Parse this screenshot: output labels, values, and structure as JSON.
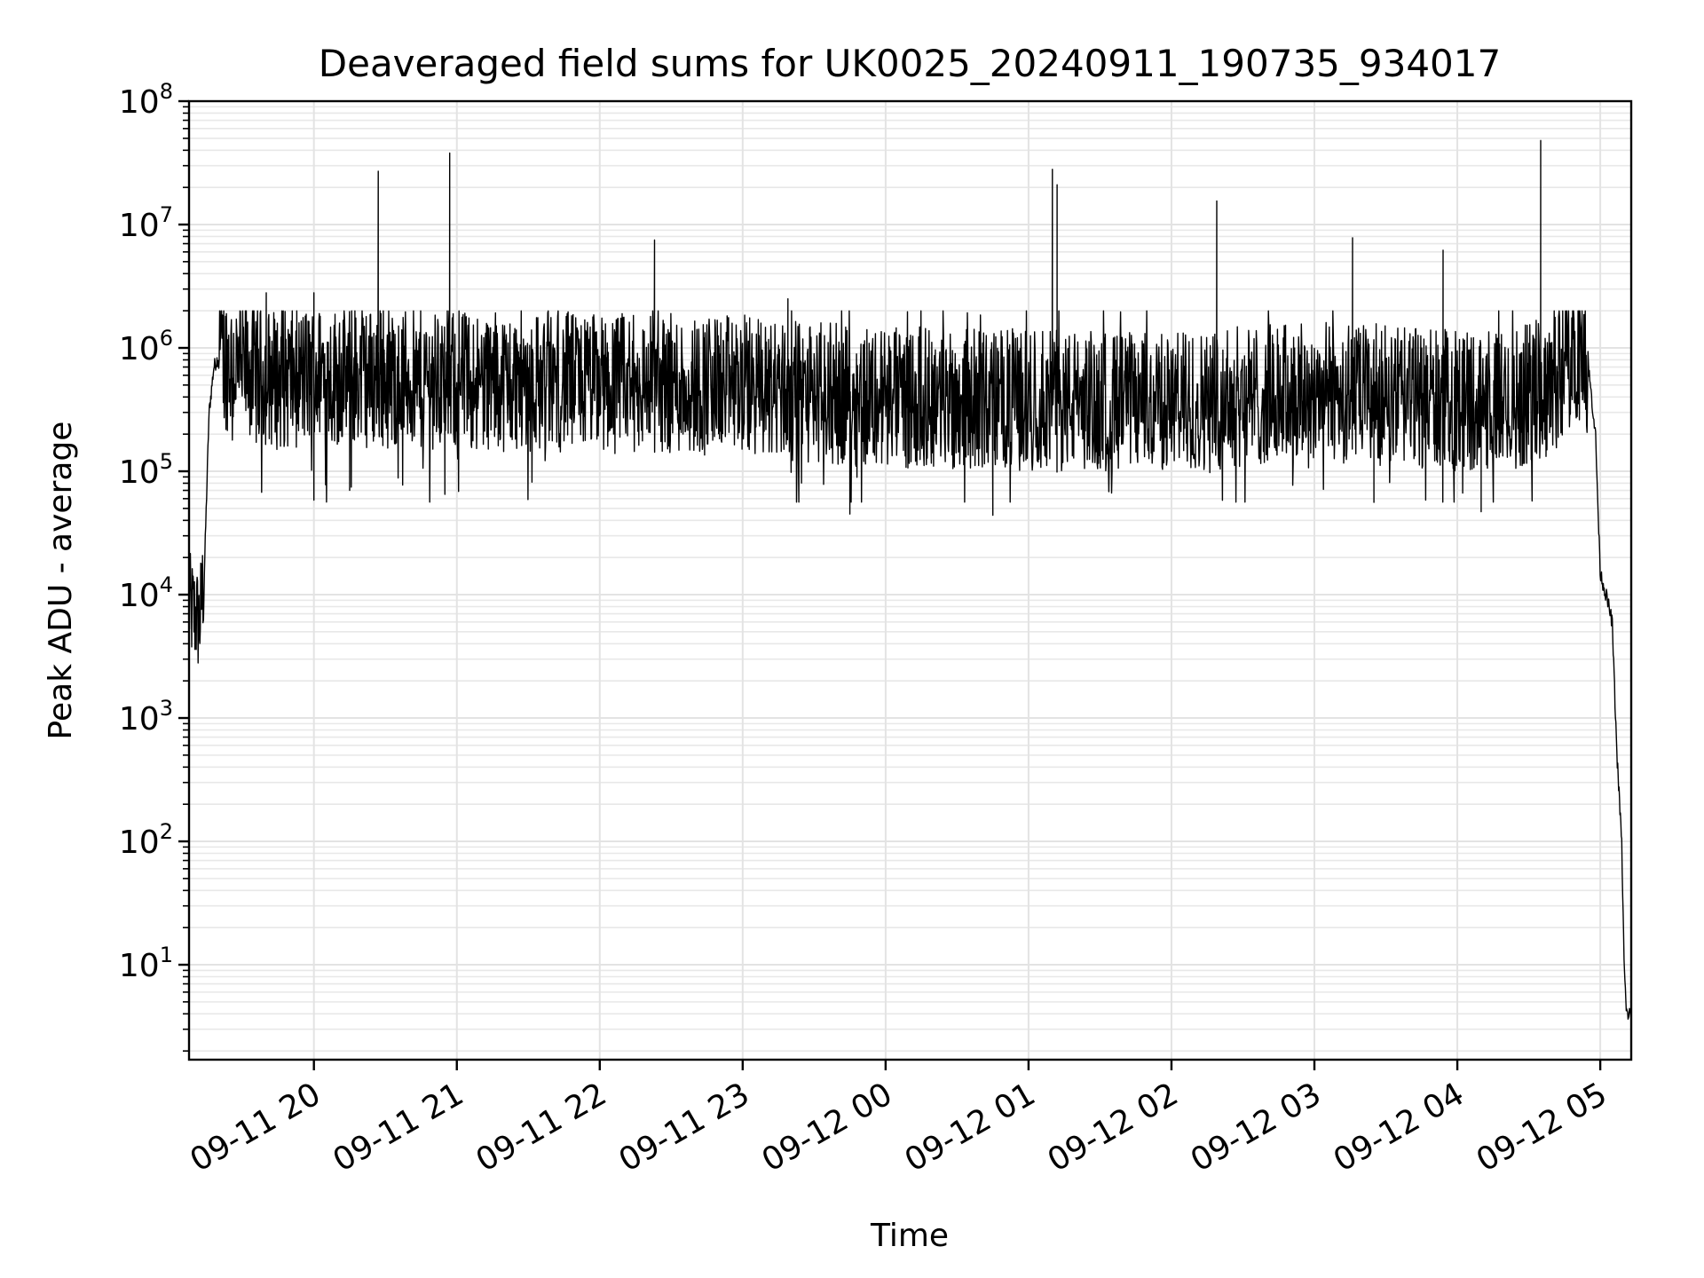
{
  "chart_data": {
    "type": "line",
    "title": "Deaveraged field sums for UK0025_20240911_190735_934017",
    "xlabel": "Time",
    "ylabel": "Peak ADU - average",
    "yscale": "log",
    "grid": true,
    "x_axis": {
      "type": "datetime",
      "range": [
        "2024-09-11 19:07:35",
        "2024-09-12 05:13:00"
      ],
      "ticks": [
        {
          "value": "2024-09-11 20:00",
          "label": "09-11 20"
        },
        {
          "value": "2024-09-11 21:00",
          "label": "09-11 21"
        },
        {
          "value": "2024-09-11 22:00",
          "label": "09-11 22"
        },
        {
          "value": "2024-09-11 23:00",
          "label": "09-11 23"
        },
        {
          "value": "2024-09-12 00:00",
          "label": "09-12 00"
        },
        {
          "value": "2024-09-12 01:00",
          "label": "09-12 01"
        },
        {
          "value": "2024-09-12 02:00",
          "label": "09-12 02"
        },
        {
          "value": "2024-09-12 03:00",
          "label": "09-12 03"
        },
        {
          "value": "2024-09-12 04:00",
          "label": "09-12 04"
        },
        {
          "value": "2024-09-12 05:00",
          "label": "09-12 05"
        }
      ]
    },
    "y_axis": {
      "range": [
        1.7,
        100000000
      ],
      "ticks": [
        {
          "value": 10,
          "base": "10",
          "exp": "1"
        },
        {
          "value": 100,
          "base": "10",
          "exp": "2"
        },
        {
          "value": 1000,
          "base": "10",
          "exp": "3"
        },
        {
          "value": 10000,
          "base": "10",
          "exp": "4"
        },
        {
          "value": 100000,
          "base": "10",
          "exp": "5"
        },
        {
          "value": 1000000,
          "base": "10",
          "exp": "6"
        },
        {
          "value": 10000000,
          "base": "10",
          "exp": "7"
        },
        {
          "value": 100000000,
          "base": "10",
          "exp": "8"
        }
      ]
    },
    "series": [
      {
        "color": "#000000",
        "baseline": {
          "x": [
            "2024-09-11 19:07:35",
            "2024-09-11 19:12",
            "2024-09-11 19:14",
            "2024-09-11 19:16",
            "2024-09-11 19:18",
            "2024-09-11 19:20",
            "2024-09-11 19:30",
            "2024-09-11 19:45",
            "2024-09-11 20:00",
            "2024-09-11 21:00",
            "2024-09-11 22:00",
            "2024-09-11 23:00",
            "2024-09-11 23:40",
            "2024-09-12 00:00",
            "2024-09-12 01:00",
            "2024-09-12 02:00",
            "2024-09-12 03:00",
            "2024-09-12 04:00",
            "2024-09-12 04:20",
            "2024-09-12 04:40",
            "2024-09-12 04:50",
            "2024-09-12 04:55",
            "2024-09-12 04:58",
            "2024-09-12 05:00",
            "2024-09-12 05:03",
            "2024-09-12 05:05",
            "2024-09-12 05:07",
            "2024-09-12 05:09",
            "2024-09-12 05:10",
            "2024-09-12 05:11",
            "2024-09-12 05:13"
          ],
          "y": [
            8000,
            6000,
            15000,
            300000,
            700000,
            850000,
            700000,
            550000,
            600000,
            550000,
            520000,
            500000,
            420000,
            400000,
            380000,
            360000,
            450000,
            380000,
            360000,
            500000,
            1000000,
            700000,
            200000,
            15000,
            9000,
            6000,
            500,
            100,
            10,
            4,
            4
          ]
        },
        "spikes": {
          "x": [
            "2024-09-11 19:40",
            "2024-09-11 20:00",
            "2024-09-11 20:27",
            "2024-09-11 20:57",
            "2024-09-11 22:23",
            "2024-09-11 23:19",
            "2024-09-12 01:10",
            "2024-09-12 01:12",
            "2024-09-12 02:19",
            "2024-09-12 03:16",
            "2024-09-12 03:54",
            "2024-09-12 04:35"
          ],
          "y": [
            2800000,
            2800000,
            27000000,
            38000000,
            7500000,
            2500000,
            28000000,
            21000000,
            15500000,
            7800000,
            6200000,
            48000000
          ]
        },
        "noise_floor_dips": {
          "x": [
            "2024-09-11 20:15",
            "2024-09-11 20:55",
            "2024-09-11 23:45",
            "2024-09-12 00:45",
            "2024-09-12 03:25",
            "2024-09-12 04:10"
          ],
          "y": [
            70000,
            65000,
            45000,
            44000,
            56000,
            47000
          ]
        }
      }
    ]
  }
}
